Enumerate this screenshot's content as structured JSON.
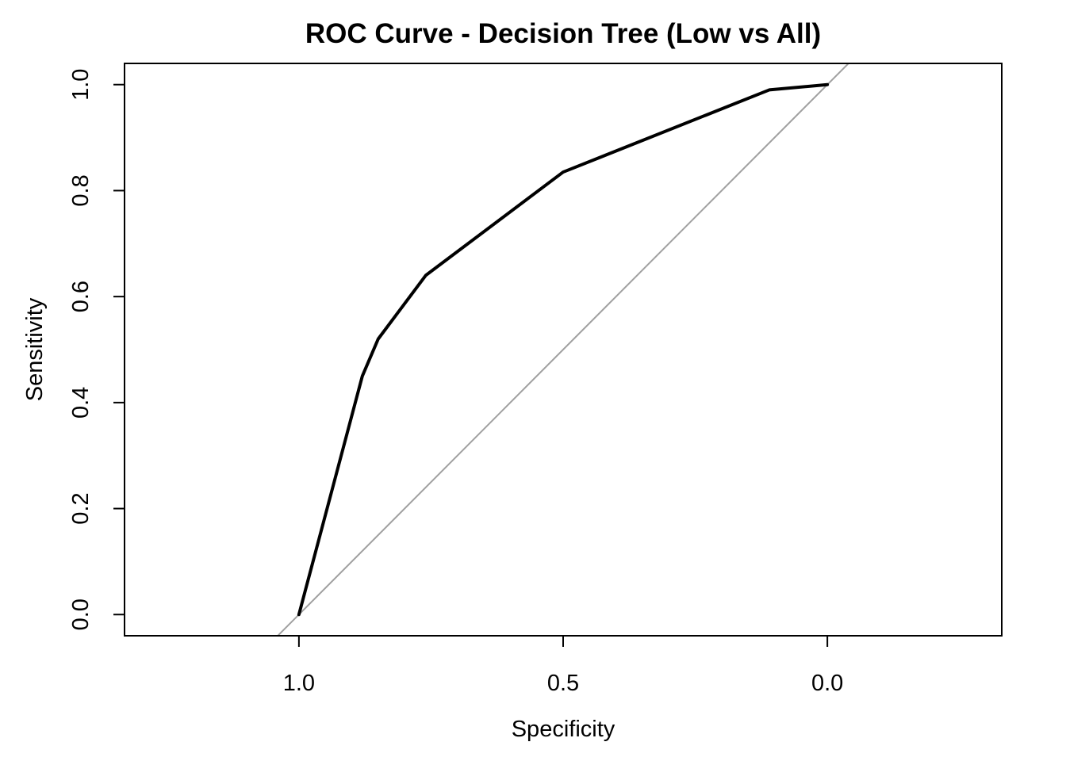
{
  "chart_data": {
    "type": "line",
    "title": "ROC Curve - Decision Tree (Low vs All)",
    "xlabel": "Specificity",
    "ylabel": "Sensitivity",
    "x_reversed": true,
    "xlim": [
      1.33,
      -0.33
    ],
    "ylim": [
      -0.04,
      1.04
    ],
    "x_ticks": [
      1.0,
      0.5,
      0.0
    ],
    "x_tick_labels": [
      "1.0",
      "0.5",
      "0.0"
    ],
    "y_ticks": [
      0.0,
      0.2,
      0.4,
      0.6,
      0.8,
      1.0
    ],
    "y_tick_labels": [
      "0.0",
      "0.2",
      "0.4",
      "0.6",
      "0.8",
      "1.0"
    ],
    "grid": false,
    "series": [
      {
        "color": "#000000",
        "x": [
          1.0,
          0.88,
          0.85,
          0.76,
          0.5,
          0.11,
          0.0
        ],
        "y": [
          0.0,
          0.45,
          0.52,
          0.64,
          0.835,
          0.99,
          1.0
        ]
      }
    ],
    "reference_line": {
      "color": "#a0a0a0",
      "x": [
        1.0,
        0.0
      ],
      "y": [
        0.0,
        1.0
      ]
    }
  }
}
